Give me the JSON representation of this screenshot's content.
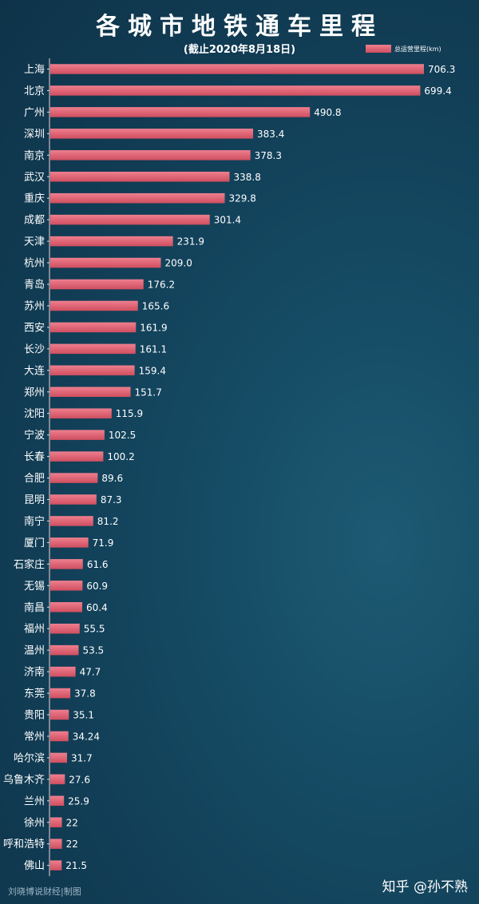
{
  "title": "各城市地铁通车里程",
  "subtitle": "(截止2020年8月18日)",
  "footer": {
    "credit": "刘晓博说财经|制图",
    "watermark": "知乎 @孙不熟"
  },
  "colors": {
    "bar_top": "#ee7f8e",
    "bar_bottom": "#cf4e5f",
    "axis": "#f2d4d8"
  },
  "chart_data": {
    "type": "bar",
    "orientation": "horizontal",
    "title": "各城市地铁通车里程",
    "subtitle": "(截止2020年8月18日)",
    "legend": {
      "position": "top-right",
      "entries": [
        "总运营里程(km)"
      ]
    },
    "categories": [
      "上海",
      "北京",
      "广州",
      "深圳",
      "南京",
      "武汉",
      "重庆",
      "成都",
      "天津",
      "杭州",
      "青岛",
      "苏州",
      "西安",
      "长沙",
      "大连",
      "郑州",
      "沈阳",
      "宁波",
      "长春",
      "合肥",
      "昆明",
      "南宁",
      "厦门",
      "石家庄",
      "无锡",
      "南昌",
      "福州",
      "温州",
      "济南",
      "东莞",
      "贵阳",
      "常州",
      "哈尔滨",
      "乌鲁木齐",
      "兰州",
      "徐州",
      "呼和浩特",
      "佛山"
    ],
    "value_labels": [
      "706.3",
      "699.4",
      "490.8",
      "383.4",
      "378.3",
      "338.8",
      "329.8",
      "301.4",
      "231.9",
      "209.0",
      "176.2",
      "165.6",
      "161.9",
      "161.1",
      "159.4",
      "151.7",
      "115.9",
      "102.5",
      "100.2",
      "89.6",
      "87.3",
      "81.2",
      "71.9",
      "61.6",
      "60.9",
      "60.4",
      "55.5",
      "53.5",
      "47.7",
      "37.8",
      "35.1",
      "34.24",
      "31.7",
      "27.6",
      "25.9",
      "22",
      "22",
      "21.5"
    ],
    "series": [
      {
        "name": "总运营里程(km)",
        "values": [
          706.3,
          699.4,
          490.8,
          383.4,
          378.3,
          338.8,
          329.8,
          301.4,
          231.9,
          209.0,
          176.2,
          165.6,
          161.9,
          161.1,
          159.4,
          151.7,
          115.9,
          102.5,
          100.2,
          89.6,
          87.3,
          81.2,
          71.9,
          61.6,
          60.9,
          60.4,
          55.5,
          53.5,
          47.7,
          37.8,
          35.1,
          34.24,
          31.7,
          27.6,
          25.9,
          22,
          22,
          21.5
        ]
      }
    ],
    "xlim": [
      0,
      706.3
    ],
    "grid": false
  }
}
